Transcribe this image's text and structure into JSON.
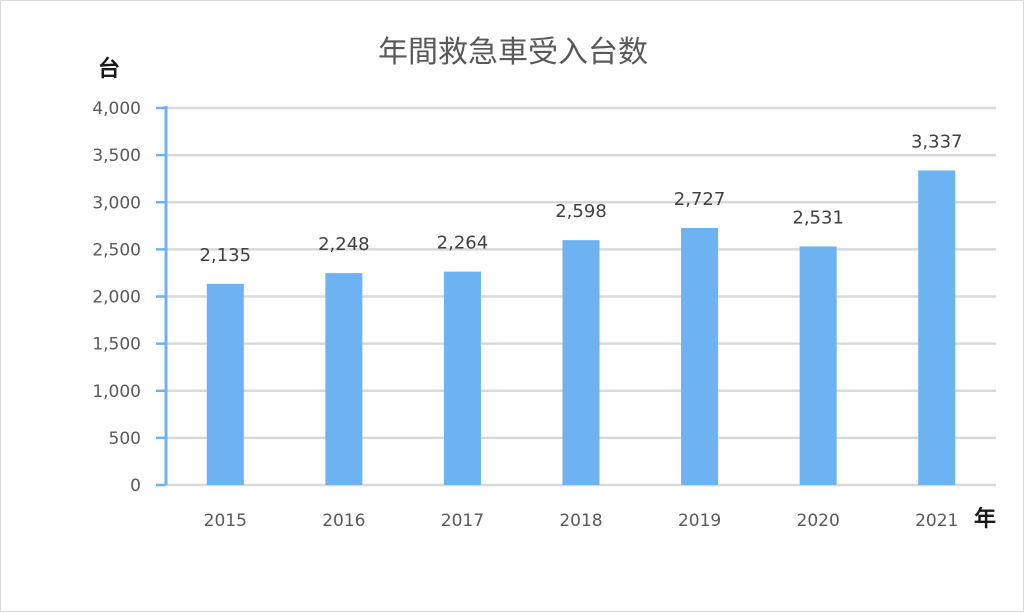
{
  "chart_data": {
    "type": "bar",
    "title": "年間救急車受入台数",
    "ylabel": "台",
    "xlabel": "年",
    "categories": [
      "2015",
      "2016",
      "2017",
      "2018",
      "2019",
      "2020",
      "2021"
    ],
    "values": [
      2135,
      2248,
      2264,
      2598,
      2727,
      2531,
      3337
    ],
    "value_labels": [
      "2,135",
      "2,248",
      "2,264",
      "2,598",
      "2,727",
      "2,531",
      "3,337"
    ],
    "ylim": [
      0,
      4000
    ],
    "yticks": [
      0,
      500,
      1000,
      1500,
      2000,
      2500,
      3000,
      3500,
      4000
    ],
    "ytick_labels": [
      "0",
      "500",
      "1,000",
      "1,500",
      "2,000",
      "2,500",
      "3,000",
      "3,500",
      "4,000"
    ],
    "grid": true,
    "colors": {
      "bar": "#6db3f2",
      "axis": "#6db3f2",
      "grid": "#d9d9d9"
    }
  }
}
